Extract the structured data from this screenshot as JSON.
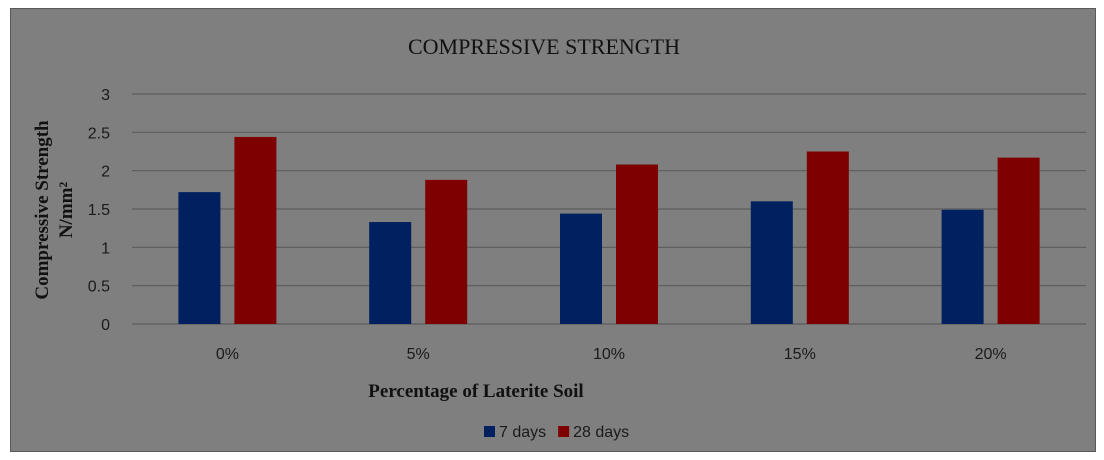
{
  "chart_data": {
    "type": "bar",
    "title": "COMPRESSIVE STRENGTH",
    "xlabel": "Percentage of Laterite Soil",
    "ylabel_line1": "Compressive Strength",
    "ylabel_line2": "N/mm²",
    "categories": [
      "0%",
      "5%",
      "10%",
      "15%",
      "20%"
    ],
    "series": [
      {
        "name": "7 days",
        "values": [
          1.72,
          1.33,
          1.44,
          1.6,
          1.49
        ],
        "color": "#002060"
      },
      {
        "name": "28 days",
        "values": [
          2.44,
          1.88,
          2.08,
          2.25,
          2.17
        ],
        "color": "#7f0000"
      }
    ],
    "ylim": [
      0,
      3
    ],
    "yticks": [
      0,
      0.5,
      1,
      1.5,
      2,
      2.5,
      3
    ],
    "grid": true,
    "legend_position": "bottom",
    "colors": {
      "background": "#7f7f7f",
      "gridline": "#5c5c5c"
    }
  }
}
